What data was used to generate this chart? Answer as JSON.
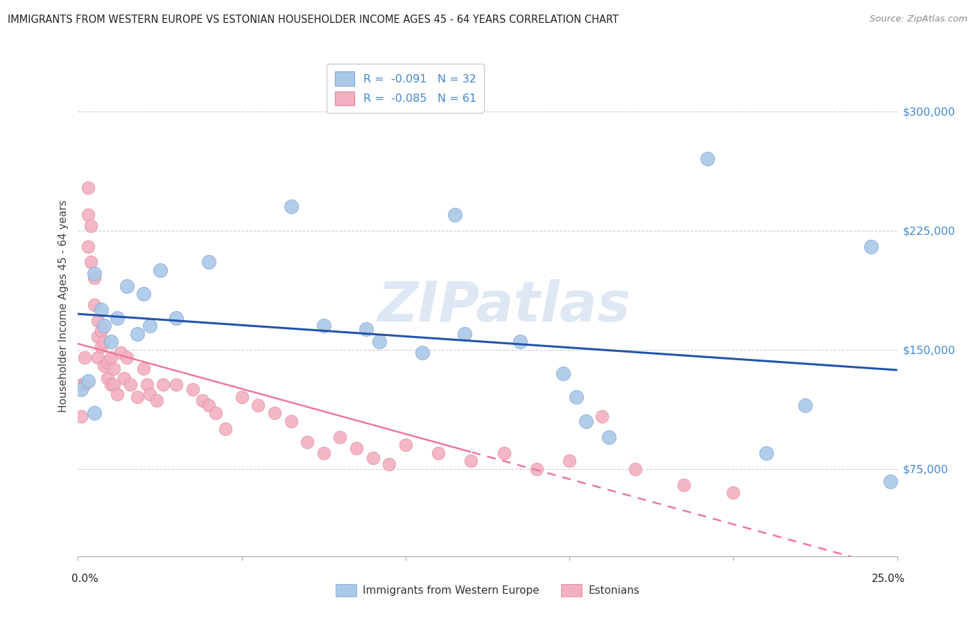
{
  "title": "IMMIGRANTS FROM WESTERN EUROPE VS ESTONIAN HOUSEHOLDER INCOME AGES 45 - 64 YEARS CORRELATION CHART",
  "source": "Source: ZipAtlas.com",
  "ylabel": "Householder Income Ages 45 - 64 years",
  "yticks": [
    75000,
    150000,
    225000,
    300000
  ],
  "ytick_labels": [
    "$75,000",
    "$150,000",
    "$225,000",
    "$300,000"
  ],
  "xtick_labels": [
    "0.0%",
    "25.0%"
  ],
  "xlim": [
    0.0,
    0.25
  ],
  "ylim": [
    20000,
    335000
  ],
  "legend_blue_r": "-0.091",
  "legend_blue_n": "32",
  "legend_pink_r": "-0.085",
  "legend_pink_n": "61",
  "text_color": "#4488cc",
  "blue_color": "#aac8e8",
  "pink_color": "#f2b0c0",
  "line_blue_color": "#2255aa",
  "line_pink_color": "#ee7799",
  "watermark_color": "#c8d8ec",
  "watermark": "ZIPatlas",
  "bottom_legend_labels": [
    "Immigrants from Western Europe",
    "Estonians"
  ],
  "blue_x": [
    0.001,
    0.003,
    0.005,
    0.007,
    0.008,
    0.01,
    0.012,
    0.015,
    0.018,
    0.02,
    0.022,
    0.025,
    0.03,
    0.04,
    0.065,
    0.075,
    0.088,
    0.092,
    0.105,
    0.115,
    0.118,
    0.135,
    0.148,
    0.152,
    0.155,
    0.162,
    0.192,
    0.21,
    0.222,
    0.242,
    0.248,
    0.005
  ],
  "blue_y": [
    125000,
    130000,
    110000,
    175000,
    165000,
    155000,
    170000,
    190000,
    160000,
    185000,
    165000,
    200000,
    170000,
    205000,
    240000,
    165000,
    163000,
    155000,
    148000,
    235000,
    160000,
    155000,
    135000,
    120000,
    105000,
    95000,
    270000,
    85000,
    115000,
    215000,
    67000,
    198000
  ],
  "pink_x": [
    0.001,
    0.001,
    0.002,
    0.002,
    0.003,
    0.003,
    0.003,
    0.004,
    0.004,
    0.005,
    0.005,
    0.006,
    0.006,
    0.006,
    0.007,
    0.007,
    0.008,
    0.008,
    0.009,
    0.009,
    0.01,
    0.01,
    0.011,
    0.011,
    0.012,
    0.013,
    0.014,
    0.015,
    0.016,
    0.018,
    0.02,
    0.021,
    0.022,
    0.024,
    0.026,
    0.03,
    0.035,
    0.038,
    0.04,
    0.042,
    0.045,
    0.05,
    0.055,
    0.06,
    0.065,
    0.07,
    0.075,
    0.08,
    0.085,
    0.09,
    0.095,
    0.1,
    0.11,
    0.12,
    0.13,
    0.14,
    0.15,
    0.16,
    0.17,
    0.185,
    0.2
  ],
  "pink_y": [
    128000,
    108000,
    145000,
    128000,
    252000,
    235000,
    215000,
    228000,
    205000,
    195000,
    178000,
    168000,
    158000,
    145000,
    162000,
    152000,
    155000,
    140000,
    142000,
    132000,
    128000,
    145000,
    138000,
    128000,
    122000,
    148000,
    132000,
    145000,
    128000,
    120000,
    138000,
    128000,
    122000,
    118000,
    128000,
    128000,
    125000,
    118000,
    115000,
    110000,
    100000,
    120000,
    115000,
    110000,
    105000,
    92000,
    85000,
    95000,
    88000,
    82000,
    78000,
    90000,
    85000,
    80000,
    85000,
    75000,
    80000,
    108000,
    75000,
    65000,
    60000
  ]
}
